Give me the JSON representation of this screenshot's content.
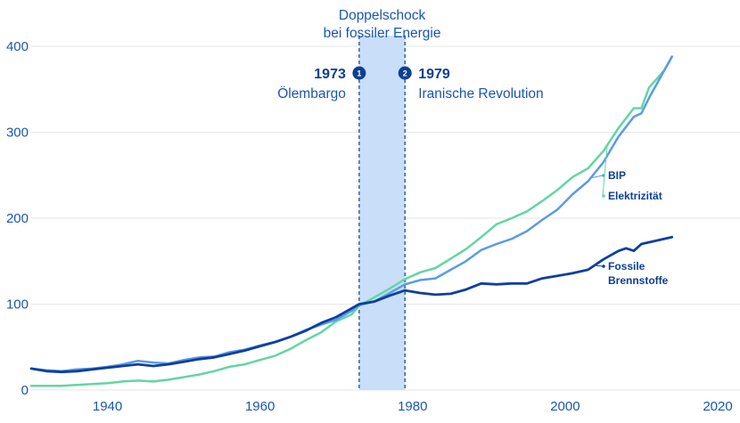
{
  "chart_data": {
    "type": "line",
    "xlim": [
      1930,
      2020
    ],
    "ylim": [
      0,
      400
    ],
    "x_ticks": [
      1940,
      1960,
      1980,
      2000,
      2020
    ],
    "y_ticks": [
      0,
      100,
      200,
      300,
      400
    ],
    "grid": "horizontal",
    "highlight_period": {
      "start": 1973,
      "end": 1979,
      "label_line1": "Doppelschock",
      "label_line2": "bei fossiler Energie"
    },
    "events": [
      {
        "marker": "1",
        "year_label": "1973",
        "text": "Ölembargo"
      },
      {
        "marker": "2",
        "year_label": "1979",
        "text": "Iranische Revolution"
      }
    ],
    "series": [
      {
        "name": "BIP",
        "color": "#5b9be6",
        "points": [
          [
            1930,
            25
          ],
          [
            1932,
            23
          ],
          [
            1934,
            22
          ],
          [
            1936,
            24
          ],
          [
            1938,
            25
          ],
          [
            1940,
            27
          ],
          [
            1942,
            30
          ],
          [
            1944,
            34
          ],
          [
            1946,
            32
          ],
          [
            1948,
            31
          ],
          [
            1950,
            35
          ],
          [
            1952,
            38
          ],
          [
            1954,
            39
          ],
          [
            1956,
            44
          ],
          [
            1958,
            47
          ],
          [
            1960,
            52
          ],
          [
            1962,
            56
          ],
          [
            1964,
            62
          ],
          [
            1966,
            70
          ],
          [
            1968,
            76
          ],
          [
            1970,
            82
          ],
          [
            1972,
            92
          ],
          [
            1973,
            99
          ],
          [
            1975,
            103
          ],
          [
            1977,
            113
          ],
          [
            1979,
            123
          ],
          [
            1981,
            128
          ],
          [
            1983,
            130
          ],
          [
            1985,
            140
          ],
          [
            1987,
            150
          ],
          [
            1989,
            163
          ],
          [
            1991,
            170
          ],
          [
            1993,
            176
          ],
          [
            1995,
            185
          ],
          [
            1997,
            198
          ],
          [
            1999,
            210
          ],
          [
            2001,
            228
          ],
          [
            2003,
            243
          ],
          [
            2005,
            265
          ],
          [
            2007,
            295
          ],
          [
            2009,
            318
          ],
          [
            2010,
            322
          ],
          [
            2011,
            340
          ],
          [
            2013,
            372
          ],
          [
            2014,
            388
          ]
        ]
      },
      {
        "name": "Elektrizität",
        "color": "#62d6a4",
        "points": [
          [
            1930,
            5
          ],
          [
            1934,
            5
          ],
          [
            1938,
            7
          ],
          [
            1940,
            8
          ],
          [
            1942,
            10
          ],
          [
            1944,
            11
          ],
          [
            1946,
            10
          ],
          [
            1948,
            12
          ],
          [
            1950,
            15
          ],
          [
            1952,
            18
          ],
          [
            1954,
            22
          ],
          [
            1956,
            27
          ],
          [
            1958,
            30
          ],
          [
            1960,
            35
          ],
          [
            1962,
            40
          ],
          [
            1964,
            48
          ],
          [
            1966,
            58
          ],
          [
            1968,
            67
          ],
          [
            1970,
            80
          ],
          [
            1972,
            88
          ],
          [
            1973,
            98
          ],
          [
            1975,
            108
          ],
          [
            1977,
            118
          ],
          [
            1979,
            129
          ],
          [
            1981,
            137
          ],
          [
            1983,
            142
          ],
          [
            1985,
            153
          ],
          [
            1987,
            164
          ],
          [
            1989,
            178
          ],
          [
            1991,
            193
          ],
          [
            1993,
            200
          ],
          [
            1995,
            208
          ],
          [
            1997,
            220
          ],
          [
            1999,
            233
          ],
          [
            2001,
            248
          ],
          [
            2003,
            258
          ],
          [
            2005,
            278
          ],
          [
            2007,
            305
          ],
          [
            2009,
            328
          ],
          [
            2010,
            328
          ],
          [
            2011,
            352
          ],
          [
            2013,
            372
          ],
          [
            2014,
            388
          ]
        ]
      },
      {
        "name": "Fossile Brennstoffe",
        "color": "#0d3fa0",
        "points": [
          [
            1930,
            25
          ],
          [
            1932,
            22
          ],
          [
            1934,
            21
          ],
          [
            1936,
            22
          ],
          [
            1938,
            24
          ],
          [
            1940,
            26
          ],
          [
            1942,
            28
          ],
          [
            1944,
            30
          ],
          [
            1946,
            28
          ],
          [
            1948,
            30
          ],
          [
            1950,
            33
          ],
          [
            1952,
            36
          ],
          [
            1954,
            38
          ],
          [
            1956,
            42
          ],
          [
            1958,
            46
          ],
          [
            1960,
            51
          ],
          [
            1962,
            56
          ],
          [
            1964,
            62
          ],
          [
            1966,
            69
          ],
          [
            1968,
            78
          ],
          [
            1970,
            85
          ],
          [
            1972,
            95
          ],
          [
            1973,
            100
          ],
          [
            1975,
            103
          ],
          [
            1977,
            110
          ],
          [
            1979,
            116
          ],
          [
            1981,
            113
          ],
          [
            1983,
            111
          ],
          [
            1985,
            112
          ],
          [
            1987,
            117
          ],
          [
            1989,
            124
          ],
          [
            1991,
            123
          ],
          [
            1993,
            124
          ],
          [
            1995,
            124
          ],
          [
            1997,
            130
          ],
          [
            1999,
            133
          ],
          [
            2001,
            136
          ],
          [
            2003,
            140
          ],
          [
            2005,
            152
          ],
          [
            2007,
            162
          ],
          [
            2008,
            165
          ],
          [
            2009,
            162
          ],
          [
            2010,
            170
          ],
          [
            2012,
            174
          ],
          [
            2014,
            178
          ]
        ]
      }
    ]
  }
}
